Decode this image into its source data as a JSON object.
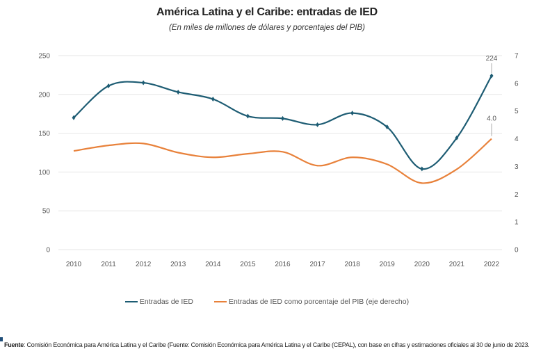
{
  "chart_data": {
    "type": "line",
    "title": "América Latina y el Caribe: entradas de IED",
    "subtitle": "(En miles de millones de dólares y porcentajes del PIB)",
    "categories": [
      "2010",
      "2011",
      "2012",
      "2013",
      "2014",
      "2015",
      "2016",
      "2017",
      "2018",
      "2019",
      "2020",
      "2021",
      "2022"
    ],
    "y_left": {
      "lim": [
        0,
        250
      ],
      "ticks": [
        "0",
        "50",
        "100",
        "150",
        "200",
        "250"
      ]
    },
    "y_right": {
      "lim": [
        0,
        7
      ],
      "ticks": [
        "0",
        "1",
        "2",
        "3",
        "4",
        "5",
        "6",
        "7"
      ]
    },
    "grid": true,
    "legend_position": "bottom",
    "series": [
      {
        "name": "Entradas de IED",
        "axis": "left",
        "color": "#1d5c73",
        "markers": true,
        "values": [
          170,
          211,
          215,
          203,
          194,
          172,
          169,
          161,
          176,
          158,
          104,
          144,
          224
        ]
      },
      {
        "name": "Entradas de IED como porcentaje del PIB (eje derecho)",
        "axis": "right",
        "color": "#e8813a",
        "markers": false,
        "values": [
          3.56,
          3.76,
          3.83,
          3.5,
          3.33,
          3.46,
          3.53,
          3.03,
          3.33,
          3.08,
          2.4,
          2.9,
          4.0
        ]
      }
    ],
    "annotations": [
      {
        "series": 0,
        "category": "2022",
        "text": "224"
      },
      {
        "series": 1,
        "category": "2022",
        "text": "4.0"
      }
    ]
  },
  "source": {
    "label": "Fuente",
    "text": ": Comisión Económica para América Latina y el Caribe (Fuente: Comisión Económica para América Latina y el Caribe (CEPAL), con base en cifras y estimaciones oficiales al 30 de junio de 2023."
  }
}
